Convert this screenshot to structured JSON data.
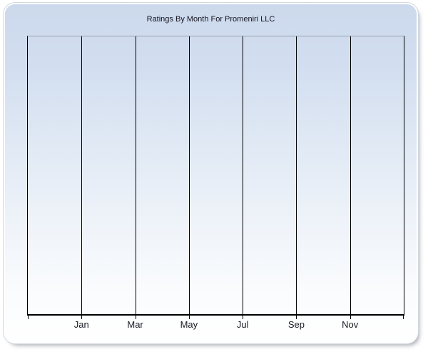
{
  "panel": {
    "title": "Ratings By Month For Promeniri LLC"
  },
  "chart_data": {
    "type": "bar",
    "title": "Ratings By Month For Promeniri LLC",
    "categories": [
      "Jan",
      "Mar",
      "May",
      "Jul",
      "Sep",
      "Nov"
    ],
    "series": [],
    "values": [],
    "xlabel": "",
    "ylabel": "",
    "x_axis": {
      "tick_labels": [
        "Jan",
        "Mar",
        "May",
        "Jul",
        "Sep",
        "Nov"
      ],
      "intervals": 7,
      "labels_centered_on_gridlines": true
    },
    "y_axis": {
      "tick_labels": []
    },
    "legend_position": "none",
    "grid": "vertical-only",
    "plot_is_empty": true
  },
  "colors": {
    "panel_gradient_top": "#ccd9ec",
    "panel_gradient_bottom": "#ffffff",
    "plot_top_border": "#94a0b2",
    "axis_and_gridlines": "#000000",
    "title_text": "#14141f",
    "tick_label_text": "#1c1c26",
    "panel_ring": "#ffffff",
    "panel_hairline": "#d3d7de"
  }
}
